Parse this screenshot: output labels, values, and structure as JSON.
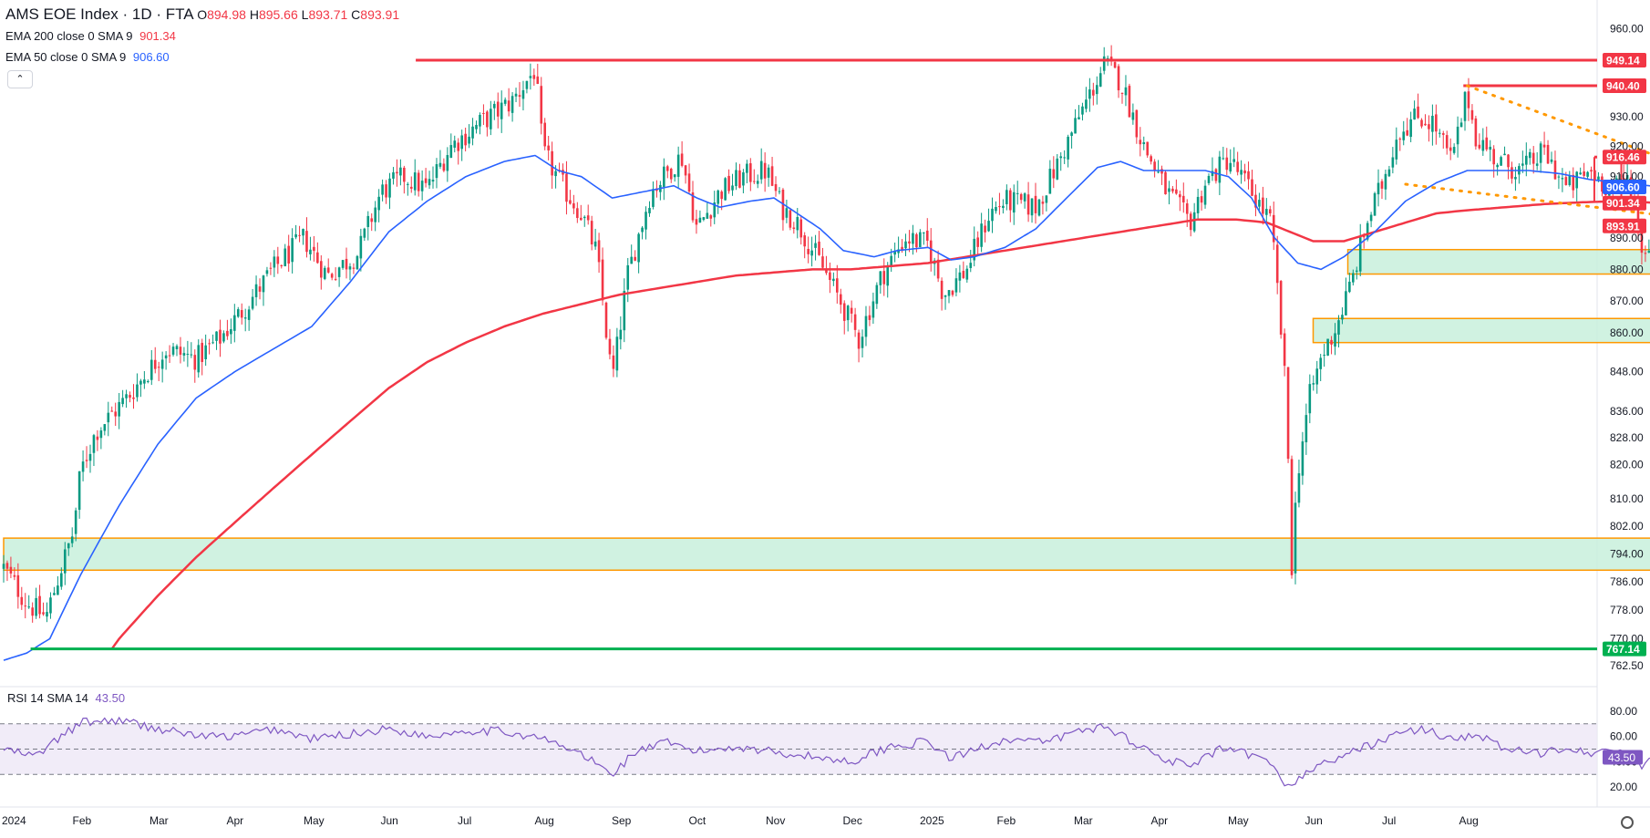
{
  "header": {
    "symbol": "AMS EOE Index · 1D · FTA",
    "ohlc": {
      "O": "894.98",
      "H": "895.66",
      "L": "893.71",
      "C": "893.91"
    },
    "ema200_label": "EMA 200 close 0 SMA 9",
    "ema200_value": "901.34",
    "ema50_label": "EMA 50 close 0 SMA 9",
    "ema50_value": "906.60",
    "rsi_label": "RSI 14 SMA 14",
    "rsi_value": "43.50"
  },
  "colors": {
    "up": "#089981",
    "down": "#f23645",
    "ema50": "#2962ff",
    "ema200": "#f23645",
    "zone_fill": "#c8f0dc",
    "zone_border": "#ff9800",
    "support": "#00b050",
    "rsi": "#7e57c2",
    "rsi_band": "#ede7f6"
  },
  "chart_data": [
    {
      "type": "candlestick",
      "title": "AMS EOE Index · 1D · FTA",
      "x_tick_labels": [
        "2024",
        "Feb",
        "Mar",
        "Apr",
        "May",
        "Jun",
        "Jul",
        "Aug",
        "Sep",
        "Oct",
        "Nov",
        "Dec",
        "2025",
        "Feb",
        "Mar",
        "Apr",
        "May",
        "Jun",
        "Jul",
        "Aug"
      ],
      "x_ticks_month_index": [
        0,
        1,
        2,
        3,
        4,
        5,
        6,
        7,
        8,
        9,
        10,
        11,
        12,
        13,
        14,
        15,
        16,
        17,
        18,
        19
      ],
      "y_tick_labels": [
        "960.00",
        "940.00",
        "930.00",
        "920.00",
        "910.00",
        "890.00",
        "880.00",
        "870.00",
        "860.00",
        "848.00",
        "836.00",
        "828.00",
        "820.00",
        "810.00",
        "802.00",
        "794.00",
        "786.00",
        "778.00",
        "770.00",
        "762.50"
      ],
      "y_ticks": [
        960,
        940,
        930,
        920,
        910,
        890,
        880,
        870,
        860,
        848,
        836,
        828,
        820,
        810,
        802,
        794,
        786,
        778,
        770,
        762.5
      ],
      "y_scale": "log",
      "ylim": [
        759.5,
        963
      ],
      "price_keypoints": [
        [
          0,
          790
        ],
        [
          0.3,
          780
        ],
        [
          0.55,
          776
        ],
        [
          0.75,
          790
        ],
        [
          0.9,
          800
        ],
        [
          1.0,
          818
        ],
        [
          1.2,
          830
        ],
        [
          1.6,
          840
        ],
        [
          2.1,
          855
        ],
        [
          2.5,
          852
        ],
        [
          2.8,
          858
        ],
        [
          3.1,
          867
        ],
        [
          3.5,
          880
        ],
        [
          3.9,
          890
        ],
        [
          4.2,
          878
        ],
        [
          4.6,
          885
        ],
        [
          4.9,
          905
        ],
        [
          5.2,
          910
        ],
        [
          5.5,
          906
        ],
        [
          5.8,
          920
        ],
        [
          6.2,
          928
        ],
        [
          6.6,
          935
        ],
        [
          6.9,
          946
        ],
        [
          7.0,
          918
        ],
        [
          7.3,
          905
        ],
        [
          7.5,
          898
        ],
        [
          7.7,
          885
        ],
        [
          7.9,
          845
        ],
        [
          8.1,
          878
        ],
        [
          8.4,
          905
        ],
        [
          8.8,
          917
        ],
        [
          9.0,
          893
        ],
        [
          9.3,
          905
        ],
        [
          9.6,
          910
        ],
        [
          9.9,
          912
        ],
        [
          10.1,
          900
        ],
        [
          10.3,
          895
        ],
        [
          10.6,
          882
        ],
        [
          10.9,
          868
        ],
        [
          11.1,
          858
        ],
        [
          11.4,
          878
        ],
        [
          11.7,
          890
        ],
        [
          12.0,
          888
        ],
        [
          12.2,
          872
        ],
        [
          12.5,
          880
        ],
        [
          12.8,
          898
        ],
        [
          13.0,
          902
        ],
        [
          13.4,
          900
        ],
        [
          13.7,
          915
        ],
        [
          14.0,
          932
        ],
        [
          14.3,
          948
        ],
        [
          14.5,
          942
        ],
        [
          14.8,
          920
        ],
        [
          15.1,
          905
        ],
        [
          15.4,
          895
        ],
        [
          15.6,
          908
        ],
        [
          15.9,
          916
        ],
        [
          16.2,
          905
        ],
        [
          16.45,
          895
        ],
        [
          16.55,
          870
        ],
        [
          16.65,
          840
        ],
        [
          16.72,
          790
        ],
        [
          16.8,
          818
        ],
        [
          16.95,
          840
        ],
        [
          17.1,
          852
        ],
        [
          17.3,
          862
        ],
        [
          17.5,
          876
        ],
        [
          17.7,
          895
        ],
        [
          17.9,
          908
        ],
        [
          18.1,
          925
        ],
        [
          18.35,
          930
        ],
        [
          18.55,
          928
        ],
        [
          18.8,
          915
        ],
        [
          19.0,
          938
        ],
        [
          19.1,
          924
        ],
        [
          19.4,
          915
        ],
        [
          19.7,
          912
        ],
        [
          20.0,
          918
        ],
        [
          20.3,
          906
        ],
        [
          20.6,
          912
        ],
        [
          20.9,
          905
        ],
        [
          21.1,
          910
        ],
        [
          21.25,
          888
        ],
        [
          21.4,
          885
        ],
        [
          21.5,
          894
        ]
      ],
      "rsi_keypoints": [
        [
          0,
          50
        ],
        [
          0.4,
          44
        ],
        [
          0.8,
          62
        ],
        [
          1.0,
          71
        ],
        [
          1.5,
          73
        ],
        [
          2.0,
          66
        ],
        [
          2.6,
          60
        ],
        [
          3.0,
          60
        ],
        [
          3.5,
          66
        ],
        [
          4.0,
          58
        ],
        [
          4.5,
          62
        ],
        [
          5.0,
          66
        ],
        [
          5.5,
          60
        ],
        [
          6.0,
          65
        ],
        [
          6.5,
          64
        ],
        [
          7.0,
          58
        ],
        [
          7.5,
          46
        ],
        [
          7.9,
          30
        ],
        [
          8.2,
          48
        ],
        [
          8.6,
          55
        ],
        [
          9.0,
          48
        ],
        [
          9.5,
          52
        ],
        [
          10.0,
          48
        ],
        [
          10.5,
          44
        ],
        [
          11.0,
          40
        ],
        [
          11.5,
          52
        ],
        [
          12.0,
          56
        ],
        [
          12.3,
          42
        ],
        [
          12.7,
          52
        ],
        [
          13.0,
          58
        ],
        [
          13.5,
          55
        ],
        [
          14.0,
          65
        ],
        [
          14.3,
          68
        ],
        [
          14.6,
          58
        ],
        [
          15.0,
          44
        ],
        [
          15.4,
          36
        ],
        [
          15.8,
          50
        ],
        [
          16.2,
          45
        ],
        [
          16.5,
          36
        ],
        [
          16.7,
          18
        ],
        [
          16.9,
          32
        ],
        [
          17.2,
          40
        ],
        [
          17.6,
          50
        ],
        [
          18.0,
          60
        ],
        [
          18.4,
          66
        ],
        [
          18.8,
          58
        ],
        [
          19.1,
          62
        ],
        [
          19.5,
          50
        ],
        [
          19.9,
          46
        ],
        [
          20.3,
          52
        ],
        [
          20.7,
          46
        ],
        [
          21.0,
          50
        ],
        [
          21.25,
          36
        ],
        [
          21.5,
          43.5
        ]
      ],
      "ema200_keypoints": [
        [
          0.5,
          740
        ],
        [
          1.0,
          755
        ],
        [
          1.5,
          770
        ],
        [
          2.0,
          782
        ],
        [
          2.5,
          793
        ],
        [
          3.0,
          803
        ],
        [
          3.5,
          813
        ],
        [
          4.0,
          823
        ],
        [
          4.5,
          833
        ],
        [
          5.0,
          843
        ],
        [
          5.5,
          851
        ],
        [
          6.0,
          857
        ],
        [
          6.5,
          862
        ],
        [
          7.0,
          866
        ],
        [
          7.5,
          869
        ],
        [
          8.0,
          872
        ],
        [
          8.5,
          874
        ],
        [
          9.0,
          876
        ],
        [
          9.5,
          878
        ],
        [
          10.0,
          879
        ],
        [
          10.5,
          880
        ],
        [
          11.0,
          880
        ],
        [
          11.5,
          881
        ],
        [
          12.0,
          882
        ],
        [
          12.5,
          884
        ],
        [
          13.0,
          886
        ],
        [
          13.5,
          888
        ],
        [
          14.0,
          890
        ],
        [
          14.5,
          892
        ],
        [
          15.0,
          894
        ],
        [
          15.5,
          896
        ],
        [
          16.0,
          896
        ],
        [
          16.4,
          895
        ],
        [
          16.7,
          892
        ],
        [
          17.0,
          889
        ],
        [
          17.4,
          889
        ],
        [
          17.8,
          892
        ],
        [
          18.2,
          895
        ],
        [
          18.6,
          898
        ],
        [
          19.0,
          899
        ],
        [
          19.5,
          900
        ],
        [
          20.0,
          901
        ],
        [
          20.5,
          901.6
        ],
        [
          21.0,
          902
        ],
        [
          21.5,
          901.34
        ]
      ],
      "ema50_keypoints": [
        [
          0,
          764
        ],
        [
          0.3,
          766
        ],
        [
          0.6,
          770
        ],
        [
          1.0,
          788
        ],
        [
          1.5,
          808
        ],
        [
          2.0,
          826
        ],
        [
          2.5,
          840
        ],
        [
          3.0,
          848
        ],
        [
          3.5,
          855
        ],
        [
          4.0,
          862
        ],
        [
          4.5,
          876
        ],
        [
          5.0,
          892
        ],
        [
          5.5,
          902
        ],
        [
          6.0,
          910
        ],
        [
          6.5,
          915
        ],
        [
          6.9,
          917
        ],
        [
          7.2,
          912
        ],
        [
          7.5,
          910
        ],
        [
          7.9,
          903
        ],
        [
          8.3,
          905
        ],
        [
          8.7,
          907
        ],
        [
          9.0,
          903
        ],
        [
          9.3,
          900
        ],
        [
          9.7,
          902
        ],
        [
          10.0,
          903
        ],
        [
          10.3,
          898
        ],
        [
          10.6,
          893
        ],
        [
          10.9,
          886
        ],
        [
          11.3,
          884
        ],
        [
          11.6,
          886
        ],
        [
          12.0,
          887
        ],
        [
          12.3,
          883
        ],
        [
          12.6,
          884
        ],
        [
          13.0,
          887
        ],
        [
          13.4,
          893
        ],
        [
          13.8,
          903
        ],
        [
          14.2,
          913
        ],
        [
          14.5,
          915
        ],
        [
          14.8,
          912
        ],
        [
          15.2,
          912
        ],
        [
          15.6,
          912
        ],
        [
          15.9,
          910
        ],
        [
          16.2,
          903
        ],
        [
          16.5,
          890
        ],
        [
          16.8,
          882
        ],
        [
          17.1,
          880
        ],
        [
          17.4,
          884
        ],
        [
          17.8,
          892
        ],
        [
          18.2,
          902
        ],
        [
          18.6,
          908
        ],
        [
          19.0,
          912
        ],
        [
          19.4,
          912
        ],
        [
          19.8,
          912
        ],
        [
          20.2,
          911
        ],
        [
          20.6,
          909
        ],
        [
          21.0,
          908
        ],
        [
          21.5,
          906.6
        ]
      ],
      "annotations": {
        "horizontal_lines": [
          {
            "label": "949.14",
            "value": 949.14,
            "from": 5.35,
            "to": 21.7,
            "color": "#f23645"
          },
          {
            "label": "940.40",
            "value": 940.4,
            "from": 18.95,
            "to": 21.7,
            "color": "#f23645"
          },
          {
            "label": "916.46",
            "value": 916.46,
            "from": 20.65,
            "to": 21.7,
            "color": "#f23645"
          },
          {
            "label": "767.14",
            "value": 767.14,
            "from": 0.35,
            "to": 21.7,
            "color": "#00b050"
          }
        ],
        "zones": [
          {
            "top": 798.5,
            "bottom": 789.3,
            "from": 0,
            "to": 21.45
          },
          {
            "top": 864.5,
            "bottom": 857,
            "from": 17.0,
            "to": 21.55
          },
          {
            "top": 886.3,
            "bottom": 878.5,
            "from": 17.45,
            "to": 21.5
          }
        ],
        "dotted_trendlines": [
          {
            "from": [
              19.0,
              940.4
            ],
            "to": [
              21.65,
              915
            ]
          },
          {
            "from": [
              18.2,
              907.5
            ],
            "to": [
              21.65,
              897
            ]
          }
        ]
      },
      "price_axis_badges": [
        {
          "label": "949.14",
          "value": 949.14,
          "bg": "#f23645"
        },
        {
          "label": "940.40",
          "value": 940.4,
          "bg": "#f23645"
        },
        {
          "label": "916.46",
          "value": 916.46,
          "bg": "#f23645"
        },
        {
          "label": "906.60",
          "value": 906.6,
          "bg": "#2962ff"
        },
        {
          "label": "901.34",
          "value": 901.34,
          "bg": "#f23645"
        },
        {
          "label": "893.91",
          "value": 893.91,
          "bg": "#f23645"
        },
        {
          "label": "767.14",
          "value": 767.14,
          "bg": "#00b050"
        }
      ]
    },
    {
      "type": "line",
      "title": "RSI 14 SMA 14",
      "y_tick_labels": [
        "80.00",
        "60.00",
        "40.00",
        "20.00"
      ],
      "y_ticks": [
        80,
        60,
        40,
        20
      ],
      "ylim": [
        15,
        85
      ],
      "band": [
        30,
        70
      ],
      "midline": 50,
      "last_value_badge": {
        "label": "43.50",
        "value": 43.5
      }
    }
  ]
}
